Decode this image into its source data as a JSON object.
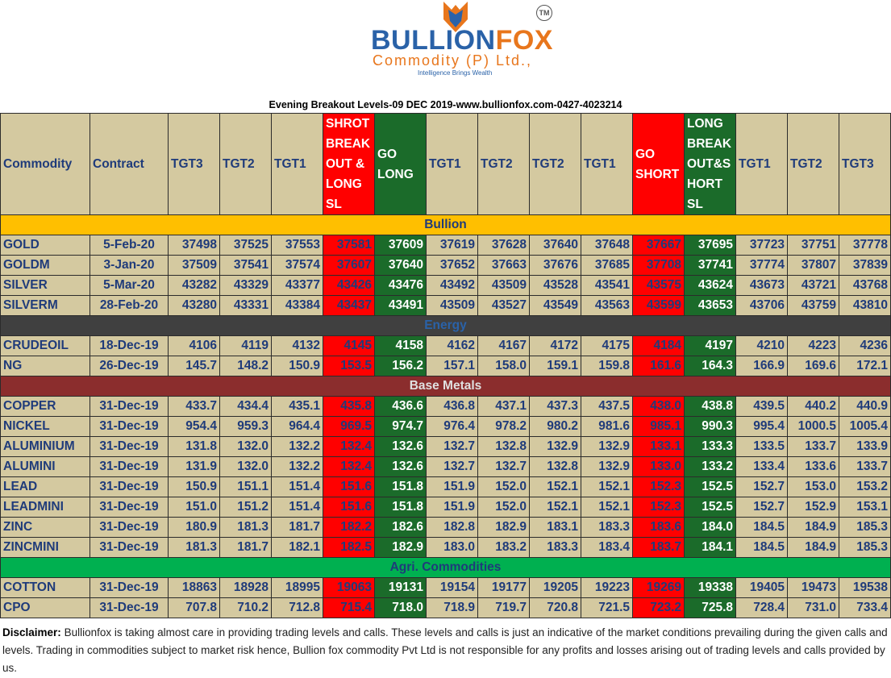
{
  "brand": {
    "name_part1": "BULLION",
    "name_part2": "FOX",
    "subtitle": "Commodity (P) Ltd.,",
    "tagline": "Intelligence Brings Wealth",
    "tm": "TM"
  },
  "title": "Evening Breakout Levels-09 DEC 2019-www.bullionfox.com-0427-4023214",
  "headers": [
    "Commodity",
    "Contract",
    "TGT3",
    "TGT2",
    "TGT1",
    "SHROT BREAK OUT & LONG SL",
    "GO LONG",
    "TGT1",
    "TGT2",
    "TGT2",
    "TGT1",
    "GO SHORT",
    "LONG BREAK OUT&S HORT SL",
    "TGT1",
    "TGT2",
    "TGT3"
  ],
  "sections": [
    {
      "name": "Bullion",
      "style": "sec-bullion",
      "rows": [
        [
          "GOLD",
          "5-Feb-20",
          "37498",
          "37525",
          "37553",
          "37581",
          "37609",
          "37619",
          "37628",
          "37640",
          "37648",
          "37667",
          "37695",
          "37723",
          "37751",
          "37778"
        ],
        [
          "GOLDM",
          "3-Jan-20",
          "37509",
          "37541",
          "37574",
          "37607",
          "37640",
          "37652",
          "37663",
          "37676",
          "37685",
          "37708",
          "37741",
          "37774",
          "37807",
          "37839"
        ],
        [
          "SILVER",
          "5-Mar-20",
          "43282",
          "43329",
          "43377",
          "43426",
          "43476",
          "43492",
          "43509",
          "43528",
          "43541",
          "43575",
          "43624",
          "43673",
          "43721",
          "43768"
        ],
        [
          "SILVERM",
          "28-Feb-20",
          "43280",
          "43331",
          "43384",
          "43437",
          "43491",
          "43509",
          "43527",
          "43549",
          "43563",
          "43599",
          "43653",
          "43706",
          "43759",
          "43810"
        ]
      ]
    },
    {
      "name": "Energy",
      "style": "sec-energy",
      "rows": [
        [
          "CRUDEOIL",
          "18-Dec-19",
          "4106",
          "4119",
          "4132",
          "4145",
          "4158",
          "4162",
          "4167",
          "4172",
          "4175",
          "4184",
          "4197",
          "4210",
          "4223",
          "4236"
        ],
        [
          "NG",
          "26-Dec-19",
          "145.7",
          "148.2",
          "150.9",
          "153.5",
          "156.2",
          "157.1",
          "158.0",
          "159.1",
          "159.8",
          "161.6",
          "164.3",
          "166.9",
          "169.6",
          "172.1"
        ]
      ]
    },
    {
      "name": "Base Metals",
      "style": "sec-base",
      "rows": [
        [
          "COPPER",
          "31-Dec-19",
          "433.7",
          "434.4",
          "435.1",
          "435.8",
          "436.6",
          "436.8",
          "437.1",
          "437.3",
          "437.5",
          "438.0",
          "438.8",
          "439.5",
          "440.2",
          "440.9"
        ],
        [
          "NICKEL",
          "31-Dec-19",
          "954.4",
          "959.3",
          "964.4",
          "969.5",
          "974.7",
          "976.4",
          "978.2",
          "980.2",
          "981.6",
          "985.1",
          "990.3",
          "995.4",
          "1000.5",
          "1005.4"
        ],
        [
          "ALUMINIUM",
          "31-Dec-19",
          "131.8",
          "132.0",
          "132.2",
          "132.4",
          "132.6",
          "132.7",
          "132.8",
          "132.9",
          "132.9",
          "133.1",
          "133.3",
          "133.5",
          "133.7",
          "133.9"
        ],
        [
          "ALUMINI",
          "31-Dec-19",
          "131.9",
          "132.0",
          "132.2",
          "132.4",
          "132.6",
          "132.7",
          "132.7",
          "132.8",
          "132.9",
          "133.0",
          "133.2",
          "133.4",
          "133.6",
          "133.7"
        ],
        [
          "LEAD",
          "31-Dec-19",
          "150.9",
          "151.1",
          "151.4",
          "151.6",
          "151.8",
          "151.9",
          "152.0",
          "152.1",
          "152.1",
          "152.3",
          "152.5",
          "152.7",
          "153.0",
          "153.2"
        ],
        [
          "LEADMINI",
          "31-Dec-19",
          "151.0",
          "151.2",
          "151.4",
          "151.6",
          "151.8",
          "151.9",
          "152.0",
          "152.1",
          "152.1",
          "152.3",
          "152.5",
          "152.7",
          "152.9",
          "153.1"
        ],
        [
          "ZINC",
          "31-Dec-19",
          "180.9",
          "181.3",
          "181.7",
          "182.2",
          "182.6",
          "182.8",
          "182.9",
          "183.1",
          "183.3",
          "183.6",
          "184.0",
          "184.5",
          "184.9",
          "185.3"
        ],
        [
          "ZINCMINI",
          "31-Dec-19",
          "181.3",
          "181.7",
          "182.1",
          "182.5",
          "182.9",
          "183.0",
          "183.2",
          "183.3",
          "183.4",
          "183.7",
          "184.1",
          "184.5",
          "184.9",
          "185.3"
        ]
      ]
    },
    {
      "name": "Agri. Commodities",
      "style": "sec-agri",
      "rows": [
        [
          "COTTON",
          "31-Dec-19",
          "18863",
          "18928",
          "18995",
          "19063",
          "19131",
          "19154",
          "19177",
          "19205",
          "19223",
          "19269",
          "19338",
          "19405",
          "19473",
          "19538"
        ],
        [
          "CPO",
          "31-Dec-19",
          "707.8",
          "710.2",
          "712.8",
          "715.4",
          "718.0",
          "718.9",
          "719.7",
          "720.8",
          "721.5",
          "723.2",
          "725.8",
          "728.4",
          "731.0",
          "733.4"
        ]
      ]
    }
  ],
  "disclaimer": {
    "label": "Disclaimer:",
    "text": "Bullionfox is taking almost care in providing trading levels and calls. These levels and calls is just an indicative of the market conditions prevailing during the given calls and levels. Trading in commodities subject to market risk hence, Bullion fox commodity Pvt Ltd is not responsible for any profits and losses arising out of trading levels and calls provided by us."
  },
  "colors": {
    "header_bg": "#d4c9a0",
    "red": "#ff0000",
    "green": "#1b6b2a",
    "bullion": "#ffbf00",
    "energy": "#404040",
    "base_metals": "#8b2d2d",
    "agri": "#00b050"
  }
}
